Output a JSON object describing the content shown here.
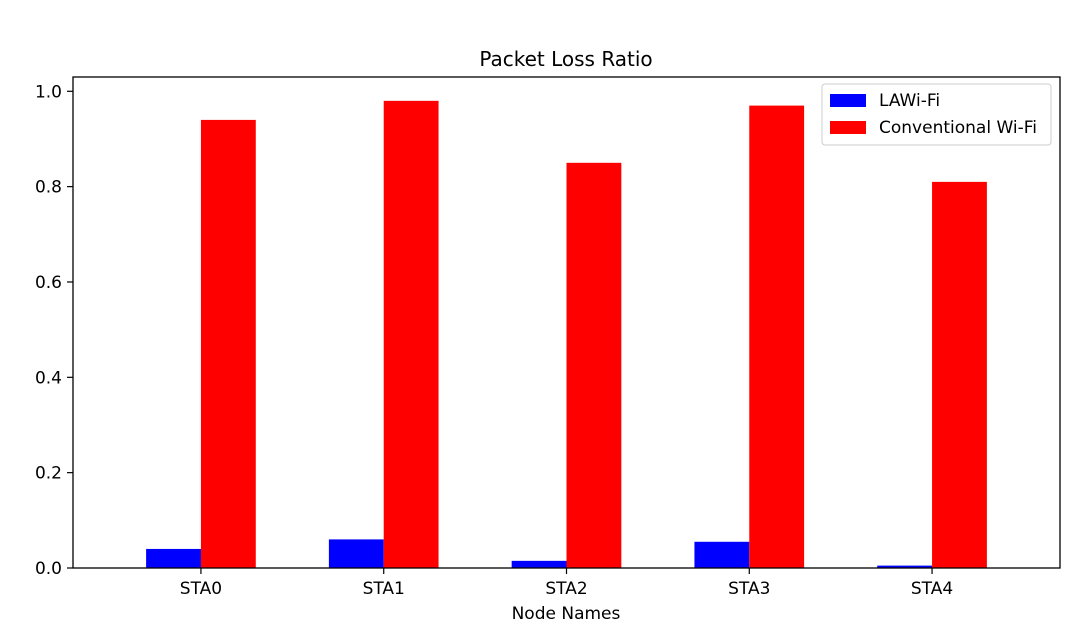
{
  "chart_data": {
    "type": "bar",
    "title": "Packet Loss Ratio",
    "xlabel": "Node Names",
    "ylabel": "",
    "categories": [
      "STA0",
      "STA1",
      "STA2",
      "STA3",
      "STA4"
    ],
    "series": [
      {
        "name": "LAWi-Fi",
        "color": "#0000ff",
        "values": [
          0.04,
          0.06,
          0.015,
          0.055,
          0.005
        ]
      },
      {
        "name": "Conventional Wi-Fi",
        "color": "#ff0000",
        "values": [
          0.94,
          0.98,
          0.85,
          0.97,
          0.81
        ]
      }
    ],
    "ylim": [
      0,
      1.03
    ],
    "yticks": [
      0.0,
      0.2,
      0.4,
      0.6,
      0.8,
      1.0
    ],
    "ytick_labels": [
      "0.0",
      "0.2",
      "0.4",
      "0.6",
      "0.8",
      "1.0"
    ],
    "grid": false,
    "legend_position": "top-right"
  }
}
